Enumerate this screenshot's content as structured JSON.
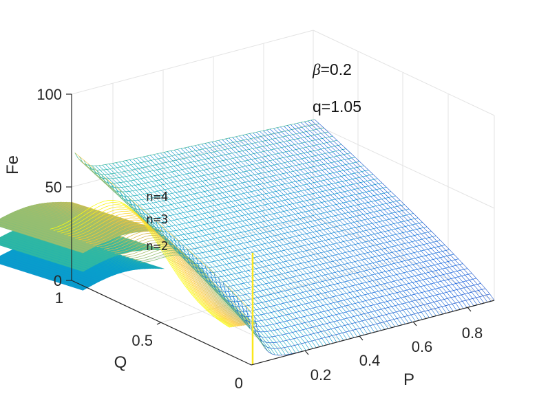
{
  "chart_data": {
    "type": "surface3d",
    "xlabel": "P",
    "ylabel": "Q",
    "zlabel": "Fe",
    "xlim": [
      0,
      0.9
    ],
    "ylim": [
      0,
      1
    ],
    "zlim": [
      0,
      100
    ],
    "x_ticks": [
      "0.2",
      "0.4",
      "0.6",
      "0.8"
    ],
    "y_ticks": [
      "0",
      "0.5",
      "1"
    ],
    "z_ticks": [
      "0",
      "50",
      "100"
    ],
    "grid": true,
    "colormap": "parula",
    "colormap_colors": [
      "#352A87",
      "#0F5CDD",
      "#1481D6",
      "#06A4CA",
      "#2EB7A4",
      "#87BF77",
      "#D1BB59",
      "#FEC832",
      "#F9FB0E"
    ],
    "annotations": {
      "beta_symbol": "β",
      "beta_text": "=0.2",
      "q_text": "q=1.05"
    },
    "series": [
      {
        "name": "n=4",
        "fe_at_p0": 42
      },
      {
        "name": "n=3",
        "fe_at_p0": 32
      },
      {
        "name": "n=2",
        "fe_at_p0": 22
      }
    ],
    "peak": {
      "p": 0.05,
      "fe": 63
    },
    "far_corner": {
      "p": 0.9,
      "q": 1,
      "fe": 58
    },
    "near_corner": {
      "p": 0.9,
      "q": 0,
      "fe": 0
    }
  }
}
